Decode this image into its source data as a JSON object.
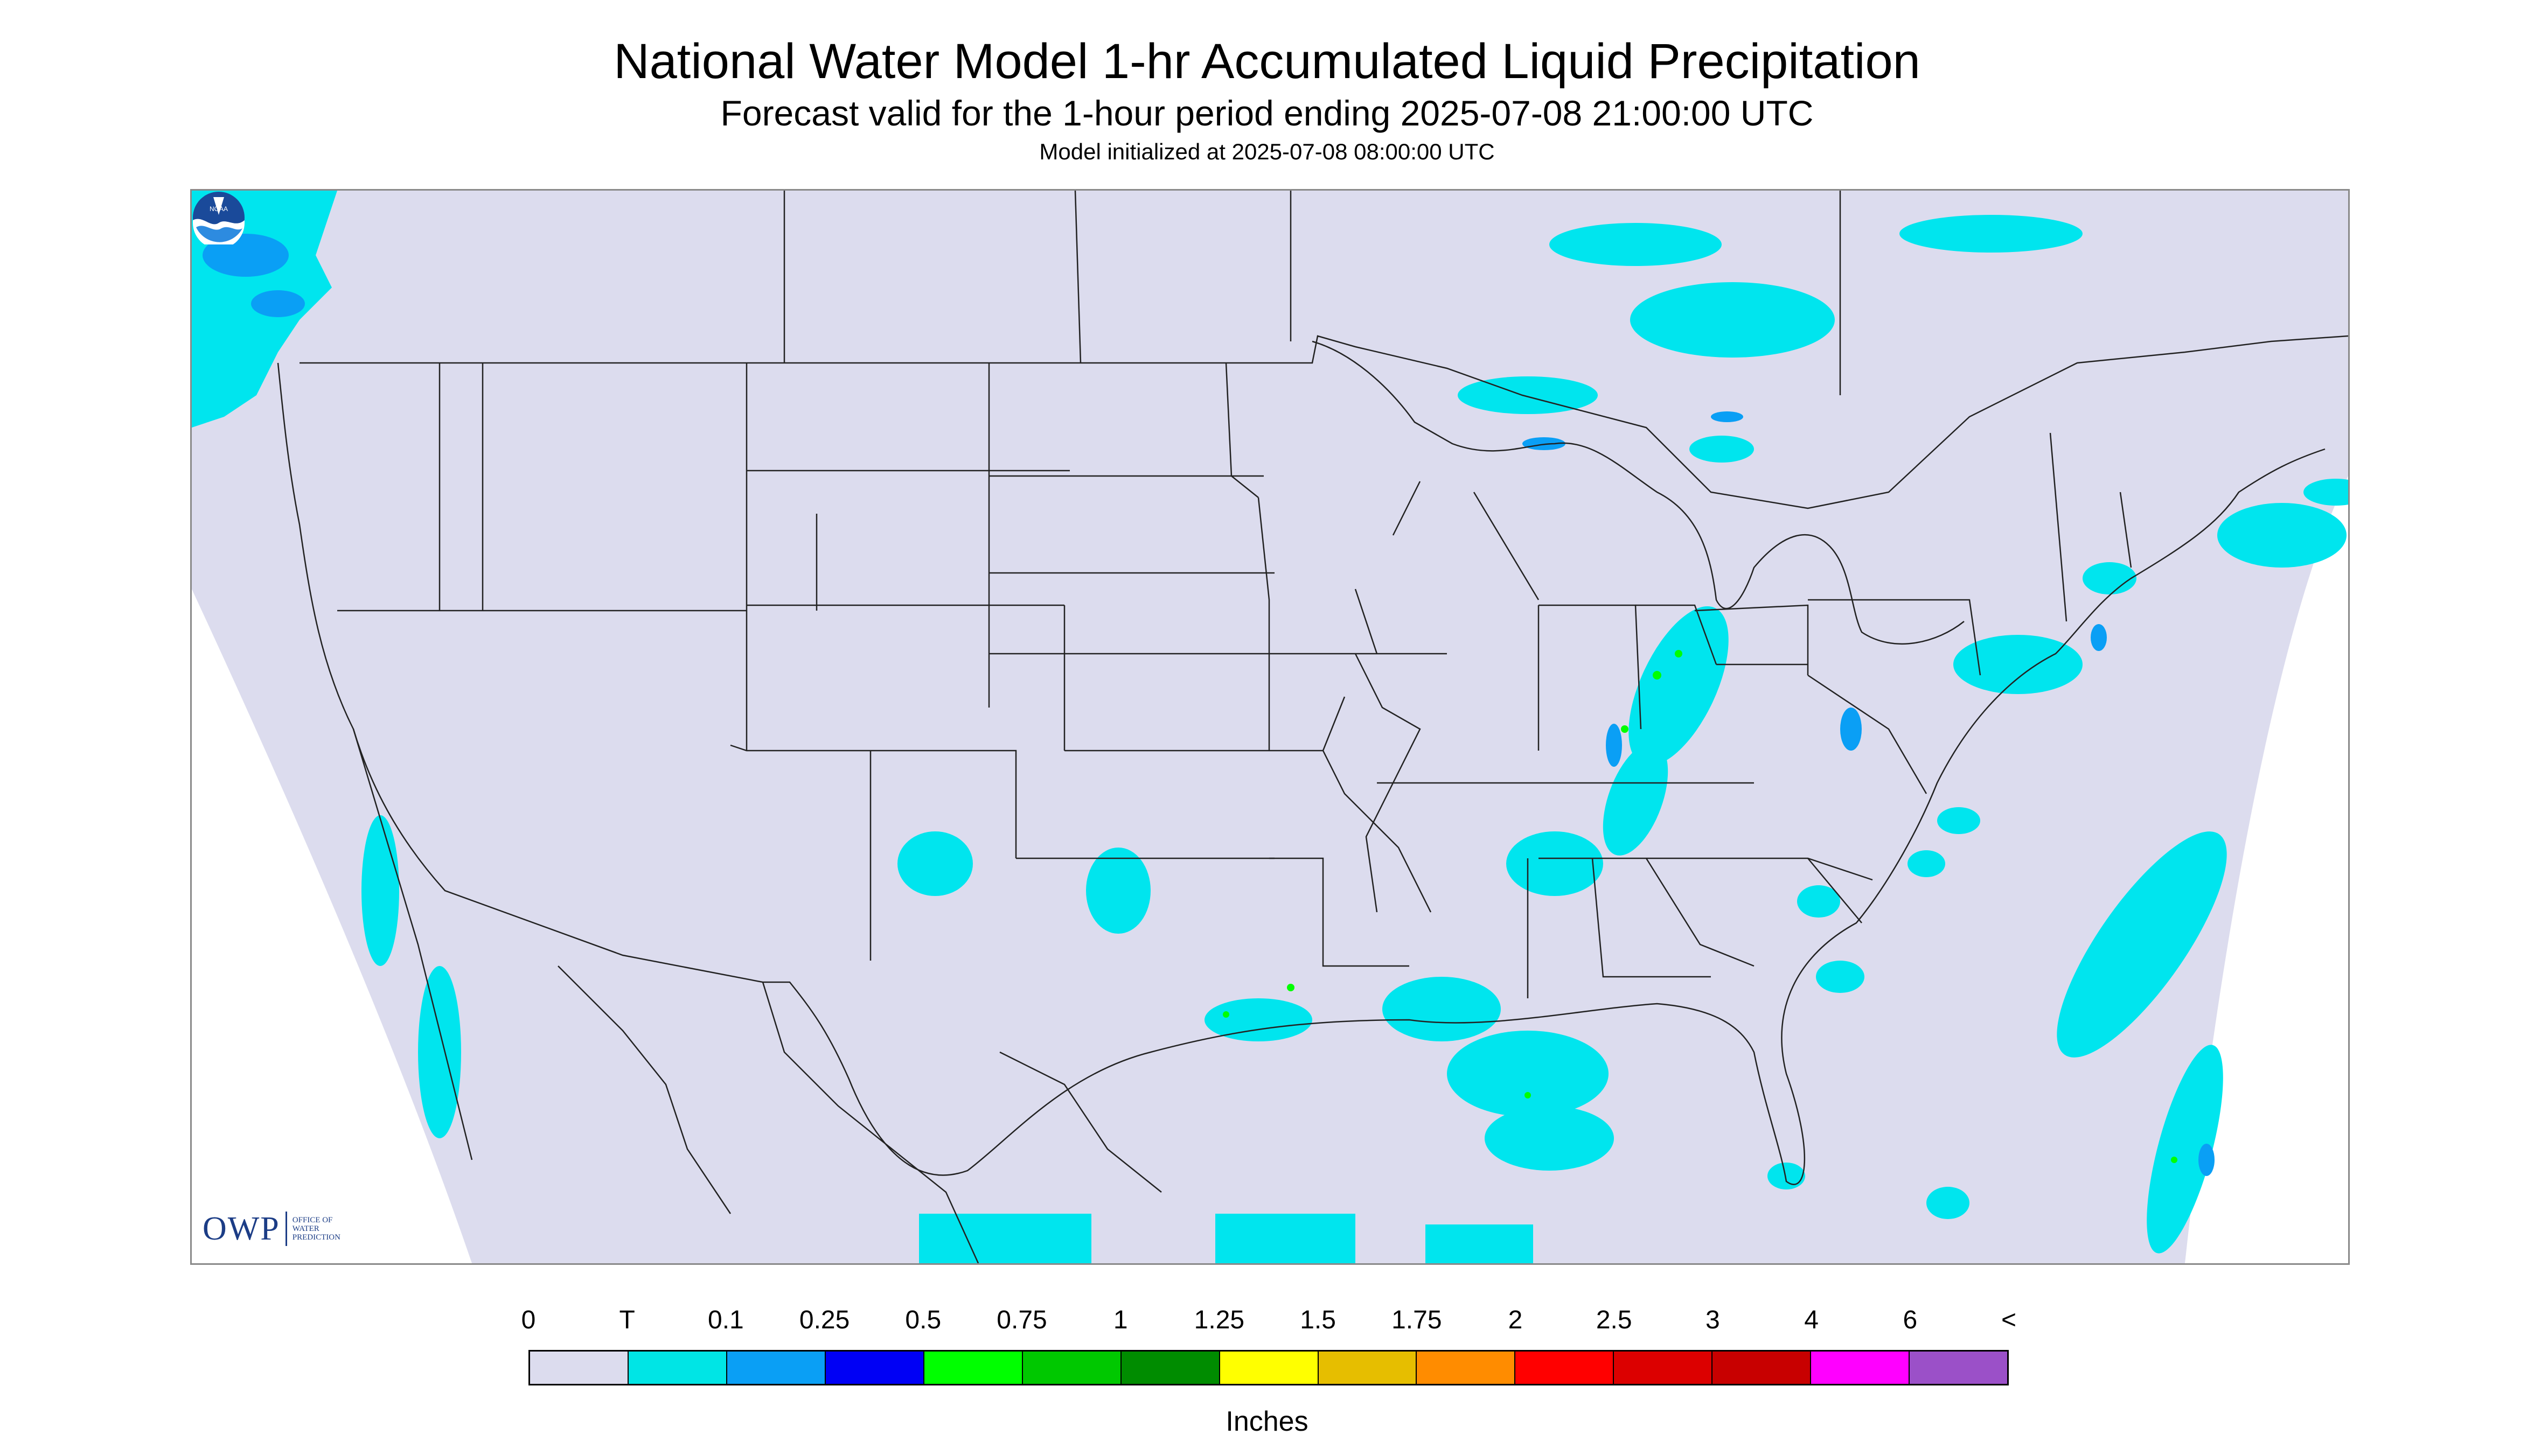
{
  "header": {
    "title": "National Water Model 1-hr Accumulated Liquid Precipitation",
    "subtitle": "Forecast valid for the 1-hour period ending 2025-07-08 21:00:00 UTC",
    "init_line": "Model initialized at 2025-07-08 08:00:00 UTC"
  },
  "logos": {
    "owp_main": "OWP",
    "owp_small": "OFFICE OF WATER PREDICTION",
    "noaa": "NOAA"
  },
  "map_colors": {
    "background": "#dcdcee",
    "outside": "#ffffff",
    "trace": "#00e5ee",
    "light": "#0a9ff5",
    "boundary": "#222222"
  },
  "legend": {
    "labels": [
      "0",
      "T",
      "0.1",
      "0.25",
      "0.5",
      "0.75",
      "1",
      "1.25",
      "1.5",
      "1.75",
      "2",
      "2.5",
      "3",
      "4",
      "6",
      "<"
    ],
    "colors": [
      "#dcdcee",
      "#00e5e5",
      "#0a9ff5",
      "#0000f5",
      "#00ff00",
      "#00c800",
      "#008c00",
      "#ffff00",
      "#e6be00",
      "#ff8c00",
      "#ff0000",
      "#dc0000",
      "#c80000",
      "#ff00ff",
      "#9b50c8"
    ],
    "units": "Inches"
  }
}
